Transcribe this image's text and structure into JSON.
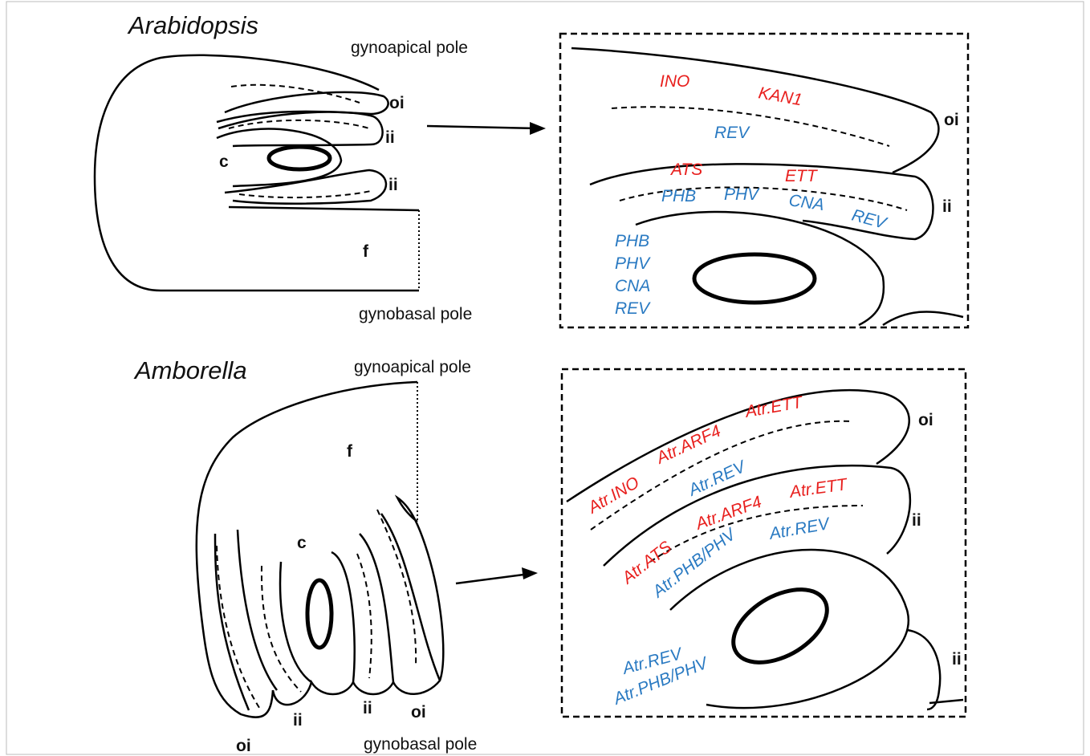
{
  "arabidopsis": {
    "title": "Arabidopsis",
    "apical": "gynoapical pole",
    "basal": "gynobasal pole",
    "ovule_labels": [
      "oi",
      "ii",
      "c",
      "ii",
      "f"
    ],
    "detail_labels": [
      "oi",
      "ii"
    ],
    "genes": [
      "INO",
      "KAN1",
      "REV",
      "ATS",
      "ETT",
      "PHB",
      "PHV",
      "CNA",
      "REV",
      "PHB",
      "PHV",
      "CNA",
      "REV"
    ]
  },
  "amborella": {
    "title": "Amborella",
    "apical": "gynoapical pole",
    "basal": "gynobasal pole",
    "ovule_labels": [
      "f",
      "c",
      "oi",
      "ii",
      "ii",
      "oi"
    ],
    "detail_labels": [
      "oi",
      "ii",
      "ii"
    ],
    "genes": [
      "Atr.ETT",
      "Atr.ARF4",
      "Atr.INO",
      "Atr.REV",
      "Atr.ARF4",
      "Atr.ETT",
      "Atr.ATS",
      "Atr.PHB/PHV",
      "Atr.REV",
      "Atr.REV",
      "Atr.PHB/PHV"
    ]
  }
}
